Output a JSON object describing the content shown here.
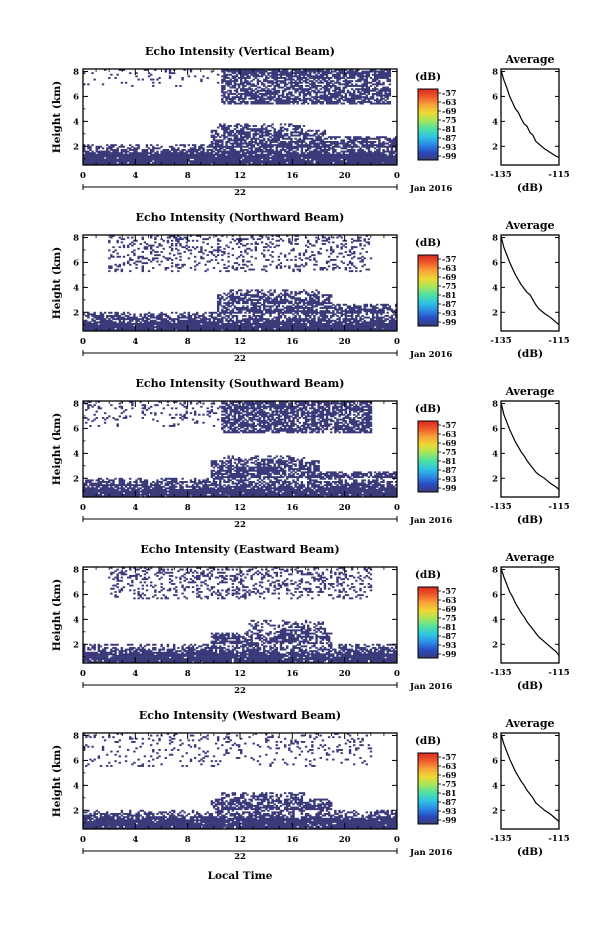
{
  "figure": {
    "colorbar_unit": "(dB)",
    "colorbar_labels": [
      "-57",
      "-63",
      "-69",
      "-75",
      "-81",
      "-87",
      "-93",
      "-99"
    ],
    "colorbar_colors": [
      "#3a3a7a",
      "#2a4cc0",
      "#2c8de6",
      "#2ec7e0",
      "#52e0a0",
      "#a8e65a",
      "#f0d835",
      "#f7a33a",
      "#ee5a2a",
      "#d82a22"
    ],
    "fill_color": "#3a3a7a",
    "x_axis_label": "Local Time",
    "date_label": "Jan 2016",
    "day_label": "22",
    "average_title": "Average",
    "average_xlabel": "(dB)",
    "height_label": "Height (km)"
  },
  "chart_data": [
    {
      "type": "heatmap",
      "title": "Echo Intensity (Vertical Beam)",
      "ylabel": "Height (km)",
      "x_ticks": [
        "0",
        "4",
        "8",
        "12",
        "16",
        "20",
        "0"
      ],
      "xlim": [
        0,
        24
      ],
      "y_ticks": [
        "2",
        "4",
        "6",
        "8"
      ],
      "ylim": [
        0.5,
        8.2
      ],
      "seed": 11,
      "layers": [
        {
          "x": [
            0,
            24
          ],
          "y": [
            0.5,
            1.4
          ],
          "p": [
            0.97,
            0.97
          ]
        },
        {
          "x": [
            0,
            24
          ],
          "y": [
            1.4,
            2.2
          ],
          "p": [
            0.85,
            0.3
          ]
        },
        {
          "x": [
            9.8,
            24
          ],
          "y": [
            1.9,
            2.8
          ],
          "p": [
            0.9,
            0.55
          ]
        },
        {
          "x": [
            9.8,
            18.5
          ],
          "y": [
            2.8,
            3.3
          ],
          "p": [
            0.8,
            0.6
          ]
        },
        {
          "x": [
            10.2,
            17
          ],
          "y": [
            3.3,
            3.9
          ],
          "p": [
            0.6,
            0.3
          ]
        },
        {
          "x": [
            10.5,
            23.5
          ],
          "y": [
            5.4,
            6.6
          ],
          "p": [
            0.75,
            0.6
          ]
        },
        {
          "x": [
            10.5,
            23.5
          ],
          "y": [
            6.6,
            8.2
          ],
          "p": [
            0.55,
            0.8
          ]
        },
        {
          "x": [
            0,
            10.5
          ],
          "y": [
            6.8,
            8.2
          ],
          "p": [
            0.05,
            0.12
          ]
        }
      ],
      "average": {
        "xlim": [
          -135,
          -115
        ],
        "x_ticks": [
          "-135",
          "-115"
        ],
        "y_ticks": [
          "2",
          "4",
          "6",
          "8"
        ],
        "ylim": [
          0.5,
          8.2
        ],
        "x": [
          -135,
          -134,
          -133,
          -132,
          -131,
          -130,
          -129,
          -128,
          -127,
          -126,
          -125,
          -124,
          -123,
          -122,
          -120,
          -118,
          -116,
          -115
        ],
        "y": [
          8.1,
          7.3,
          6.7,
          6.0,
          5.5,
          5.0,
          4.7,
          4.2,
          3.8,
          3.6,
          3.1,
          2.9,
          2.4,
          2.2,
          1.8,
          1.5,
          1.2,
          1.1
        ]
      }
    },
    {
      "type": "heatmap",
      "title": "Echo Intensity (Northward Beam)",
      "ylabel": "Height (km)",
      "x_ticks": [
        "0",
        "4",
        "8",
        "12",
        "16",
        "20",
        "0"
      ],
      "xlim": [
        0,
        24
      ],
      "y_ticks": [
        "2",
        "4",
        "6",
        "8"
      ],
      "ylim": [
        0.5,
        8.2
      ],
      "seed": 23,
      "layers": [
        {
          "x": [
            0,
            24
          ],
          "y": [
            0.5,
            1.2
          ],
          "p": [
            0.97,
            0.97
          ]
        },
        {
          "x": [
            0,
            24
          ],
          "y": [
            1.2,
            2.1
          ],
          "p": [
            0.85,
            0.3
          ]
        },
        {
          "x": [
            10.2,
            24
          ],
          "y": [
            1.9,
            2.7
          ],
          "p": [
            0.85,
            0.5
          ]
        },
        {
          "x": [
            10.2,
            19
          ],
          "y": [
            2.7,
            3.4
          ],
          "p": [
            0.8,
            0.55
          ]
        },
        {
          "x": [
            10.5,
            18
          ],
          "y": [
            3.4,
            3.9
          ],
          "p": [
            0.55,
            0.25
          ]
        },
        {
          "x": [
            2,
            22
          ],
          "y": [
            5.3,
            8.2
          ],
          "p": [
            0.18,
            0.22
          ]
        }
      ],
      "average": {
        "xlim": [
          -135,
          -115
        ],
        "x_ticks": [
          "-135",
          "-115"
        ],
        "y_ticks": [
          "2",
          "4",
          "6",
          "8"
        ],
        "ylim": [
          0.5,
          8.2
        ],
        "x": [
          -135,
          -134,
          -133,
          -132,
          -131,
          -130,
          -129,
          -128,
          -127,
          -126,
          -125,
          -124,
          -123,
          -122,
          -120,
          -118,
          -116,
          -115
        ],
        "y": [
          8.1,
          7.2,
          6.6,
          6.0,
          5.5,
          5.0,
          4.6,
          4.2,
          3.9,
          3.6,
          3.4,
          3.0,
          2.6,
          2.3,
          1.9,
          1.6,
          1.2,
          1.0
        ]
      }
    },
    {
      "type": "heatmap",
      "title": "Echo Intensity (Southward Beam)",
      "ylabel": "Height (km)",
      "x_ticks": [
        "0",
        "4",
        "8",
        "12",
        "16",
        "20",
        "0"
      ],
      "xlim": [
        0,
        24
      ],
      "y_ticks": [
        "2",
        "4",
        "6",
        "8"
      ],
      "ylim": [
        0.5,
        8.2
      ],
      "seed": 37,
      "layers": [
        {
          "x": [
            0,
            24
          ],
          "y": [
            0.5,
            1.2
          ],
          "p": [
            0.95,
            0.95
          ]
        },
        {
          "x": [
            0,
            24
          ],
          "y": [
            1.2,
            2.1
          ],
          "p": [
            0.85,
            0.3
          ]
        },
        {
          "x": [
            9.8,
            24
          ],
          "y": [
            2.1,
            2.6
          ],
          "p": [
            0.8,
            0.55
          ]
        },
        {
          "x": [
            9.8,
            18
          ],
          "y": [
            2.6,
            3.4
          ],
          "p": [
            0.8,
            0.55
          ]
        },
        {
          "x": [
            10.5,
            17
          ],
          "y": [
            3.4,
            3.9
          ],
          "p": [
            0.5,
            0.25
          ]
        },
        {
          "x": [
            10.5,
            22
          ],
          "y": [
            5.6,
            8.2
          ],
          "p": [
            0.65,
            0.75
          ]
        },
        {
          "x": [
            0,
            10.5
          ],
          "y": [
            6.2,
            8.2
          ],
          "p": [
            0.08,
            0.2
          ]
        }
      ],
      "average": {
        "xlim": [
          -135,
          -115
        ],
        "x_ticks": [
          "-135",
          "-115"
        ],
        "y_ticks": [
          "2",
          "4",
          "6",
          "8"
        ],
        "ylim": [
          0.5,
          8.2
        ],
        "x": [
          -135,
          -134,
          -133,
          -132,
          -131,
          -130,
          -129,
          -128,
          -127,
          -126,
          -125,
          -124,
          -123,
          -122,
          -120,
          -118,
          -116,
          -115
        ],
        "y": [
          8.1,
          7.1,
          6.5,
          5.9,
          5.4,
          4.9,
          4.5,
          4.1,
          3.8,
          3.4,
          3.1,
          2.8,
          2.5,
          2.3,
          2.0,
          1.6,
          1.3,
          1.1
        ]
      }
    },
    {
      "type": "heatmap",
      "title": "Echo Intensity (Eastward Beam)",
      "ylabel": "Height (km)",
      "x_ticks": [
        "0",
        "4",
        "8",
        "12",
        "16",
        "20",
        "0"
      ],
      "xlim": [
        0,
        24
      ],
      "y_ticks": [
        "2",
        "4",
        "6",
        "8"
      ],
      "ylim": [
        0.5,
        8.2
      ],
      "seed": 41,
      "layers": [
        {
          "x": [
            0,
            24
          ],
          "y": [
            0.5,
            1.3
          ],
          "p": [
            0.95,
            0.95
          ]
        },
        {
          "x": [
            0,
            24
          ],
          "y": [
            1.3,
            2.1
          ],
          "p": [
            0.8,
            0.3
          ]
        },
        {
          "x": [
            9.8,
            19
          ],
          "y": [
            2.1,
            3.0
          ],
          "p": [
            0.75,
            0.5
          ]
        },
        {
          "x": [
            12.5,
            18.5
          ],
          "y": [
            3.0,
            4.0
          ],
          "p": [
            0.5,
            0.3
          ]
        },
        {
          "x": [
            2,
            22
          ],
          "y": [
            5.6,
            8.2
          ],
          "p": [
            0.2,
            0.3
          ]
        }
      ],
      "average": {
        "xlim": [
          -135,
          -115
        ],
        "x_ticks": [
          "-135",
          "-115"
        ],
        "y_ticks": [
          "2",
          "4",
          "6",
          "8"
        ],
        "ylim": [
          0.5,
          8.2
        ],
        "x": [
          -135,
          -134,
          -133,
          -132,
          -131,
          -130,
          -129,
          -128,
          -127,
          -126,
          -125,
          -124,
          -123,
          -122,
          -120,
          -118,
          -116,
          -115
        ],
        "y": [
          8.1,
          7.4,
          6.8,
          6.2,
          5.8,
          5.3,
          4.9,
          4.5,
          4.2,
          3.8,
          3.5,
          3.2,
          2.9,
          2.6,
          2.2,
          1.8,
          1.4,
          1.1
        ]
      }
    },
    {
      "type": "heatmap",
      "title": "Echo Intensity (Westward Beam)",
      "ylabel": "Height (km)",
      "x_ticks": [
        "0",
        "4",
        "8",
        "12",
        "16",
        "20",
        "0"
      ],
      "xlim": [
        0,
        24
      ],
      "y_ticks": [
        "2",
        "4",
        "6",
        "8"
      ],
      "ylim": [
        0.5,
        8.2
      ],
      "seed": 53,
      "layers": [
        {
          "x": [
            0,
            24
          ],
          "y": [
            0.5,
            1.3
          ],
          "p": [
            0.95,
            0.95
          ]
        },
        {
          "x": [
            0,
            24
          ],
          "y": [
            1.3,
            2.0
          ],
          "p": [
            0.85,
            0.3
          ]
        },
        {
          "x": [
            9.8,
            19
          ],
          "y": [
            2.0,
            2.9
          ],
          "p": [
            0.8,
            0.55
          ]
        },
        {
          "x": [
            10.5,
            17
          ],
          "y": [
            2.9,
            3.5
          ],
          "p": [
            0.55,
            0.3
          ]
        },
        {
          "x": [
            0,
            22
          ],
          "y": [
            5.5,
            8.2
          ],
          "p": [
            0.08,
            0.15
          ]
        }
      ],
      "average": {
        "xlim": [
          -135,
          -115
        ],
        "x_ticks": [
          "-135",
          "-115"
        ],
        "y_ticks": [
          "2",
          "4",
          "6",
          "8"
        ],
        "ylim": [
          0.5,
          8.2
        ],
        "x": [
          -135,
          -134,
          -133,
          -132,
          -131,
          -130,
          -129,
          -128,
          -127,
          -126,
          -125,
          -124,
          -123,
          -122,
          -120,
          -118,
          -116,
          -115
        ],
        "y": [
          8.1,
          7.3,
          6.7,
          6.1,
          5.6,
          5.1,
          4.7,
          4.3,
          4.0,
          3.6,
          3.3,
          3.0,
          2.6,
          2.4,
          2.0,
          1.7,
          1.3,
          1.1
        ]
      }
    }
  ]
}
